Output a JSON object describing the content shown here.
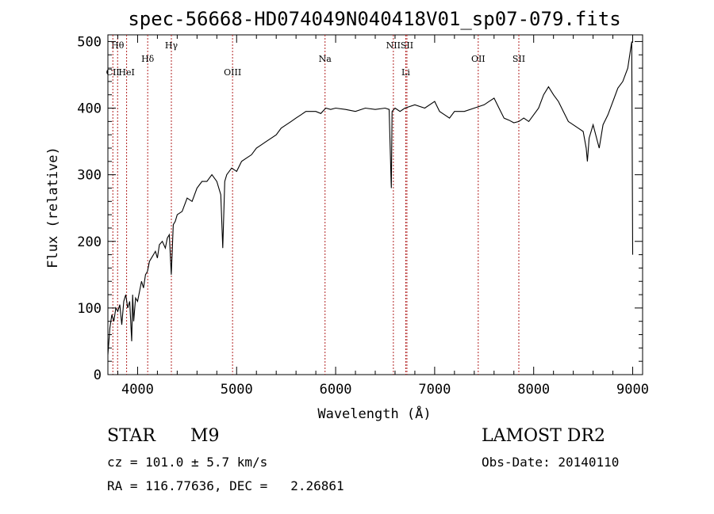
{
  "chart_data": {
    "type": "line",
    "title": "spec-56668-HD074049N040418V01_sp07-079.fits",
    "xlabel": "Wavelength (Å)",
    "ylabel": "Flux (relative)",
    "xlim": [
      3700,
      9100
    ],
    "ylim": [
      0,
      510
    ],
    "xticks": [
      4000,
      5000,
      6000,
      7000,
      8000,
      9000
    ],
    "yticks": [
      0,
      100,
      200,
      300,
      400,
      500
    ],
    "grid": false,
    "series": [
      {
        "x": [
          3700,
          3720,
          3740,
          3760,
          3780,
          3800,
          3820,
          3840,
          3860,
          3880,
          3900,
          3920,
          3940,
          3950,
          3960,
          3980,
          4000,
          4020,
          4040,
          4060,
          4080,
          4100,
          4120,
          4140,
          4160,
          4180,
          4200,
          4220,
          4250,
          4280,
          4300,
          4320,
          4340,
          4360,
          4380,
          4400,
          4450,
          4500,
          4550,
          4600,
          4650,
          4700,
          4750,
          4800,
          4840,
          4860,
          4880,
          4900,
          4950,
          5000,
          5050,
          5100,
          5150,
          5200,
          5250,
          5300,
          5350,
          5400,
          5450,
          5500,
          5550,
          5600,
          5650,
          5700,
          5750,
          5800,
          5850,
          5900,
          5950,
          6000,
          6100,
          6200,
          6300,
          6400,
          6500,
          6540,
          6560,
          6563,
          6570,
          6600,
          6650,
          6700,
          6800,
          6900,
          7000,
          7050,
          7100,
          7150,
          7200,
          7300,
          7400,
          7500,
          7550,
          7600,
          7650,
          7700,
          7750,
          7800,
          7850,
          7900,
          7950,
          8000,
          8050,
          8100,
          8150,
          8200,
          8250,
          8300,
          8350,
          8400,
          8450,
          8500,
          8530,
          8542,
          8560,
          8600,
          8662,
          8700,
          8750,
          8800,
          8850,
          8900,
          8950,
          8990,
          9000
        ],
        "y": [
          30,
          70,
          90,
          80,
          100,
          95,
          105,
          75,
          110,
          120,
          100,
          110,
          50,
          120,
          80,
          115,
          110,
          125,
          140,
          130,
          150,
          155,
          170,
          175,
          180,
          185,
          175,
          195,
          200,
          190,
          205,
          210,
          150,
          225,
          230,
          240,
          245,
          265,
          260,
          280,
          290,
          290,
          300,
          290,
          270,
          190,
          290,
          300,
          310,
          305,
          320,
          325,
          330,
          340,
          345,
          350,
          355,
          360,
          370,
          375,
          380,
          385,
          390,
          395,
          395,
          395,
          392,
          400,
          398,
          400,
          398,
          395,
          400,
          398,
          400,
          398,
          290,
          280,
          395,
          400,
          395,
          400,
          405,
          400,
          410,
          395,
          390,
          385,
          395,
          395,
          400,
          405,
          410,
          415,
          400,
          385,
          382,
          378,
          380,
          385,
          380,
          390,
          400,
          420,
          432,
          420,
          410,
          395,
          380,
          375,
          370,
          365,
          340,
          320,
          355,
          375,
          340,
          375,
          390,
          410,
          430,
          440,
          460,
          500,
          180
        ]
      }
    ]
  },
  "spectral_lines": [
    {
      "label": "Hθ",
      "x": 3798,
      "row": 1
    },
    {
      "label": "CII",
      "x": 3750,
      "row": 3
    },
    {
      "label": "HeI",
      "x": 3889,
      "row": 3
    },
    {
      "label": "Hδ",
      "x": 4102,
      "row": 2
    },
    {
      "label": "Hγ",
      "x": 4341,
      "row": 1
    },
    {
      "label": "OIII",
      "x": 4959,
      "row": 3
    },
    {
      "label": "Na",
      "x": 5893,
      "row": 2
    },
    {
      "label": "NII",
      "x": 6583,
      "row": 1
    },
    {
      "label": "SII",
      "x": 6720,
      "row": 1
    },
    {
      "label": "Li",
      "x": 6708,
      "row": 3
    },
    {
      "label": "OII",
      "x": 7440,
      "row": 2
    },
    {
      "label": "SII",
      "x": 7850,
      "row": 2
    }
  ],
  "info": {
    "object_class": "STAR",
    "subclass": "M9",
    "survey": "LAMOST DR2",
    "cz": "cz = 101.0 ± 5.7 km/s",
    "obs_date": "Obs-Date: 20140110",
    "coords": "RA = 116.77636, DEC =   2.26861"
  }
}
